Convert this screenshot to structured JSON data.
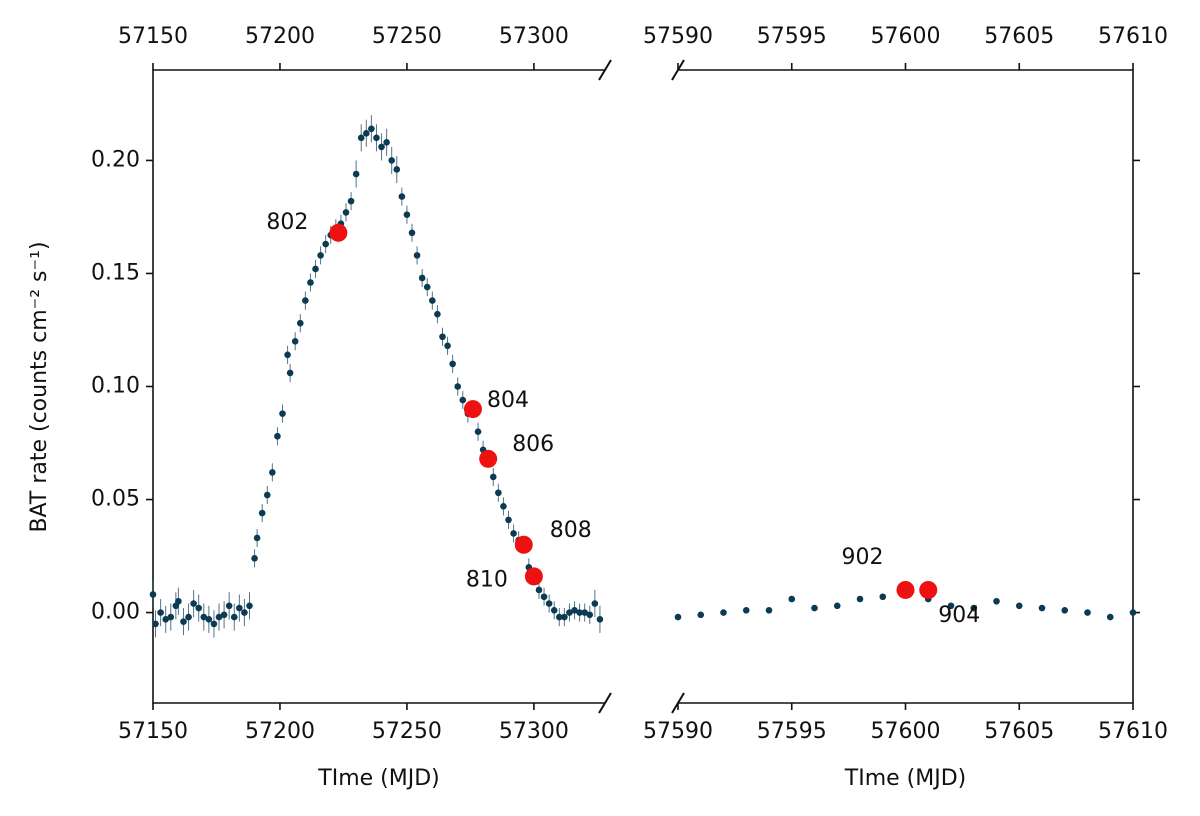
{
  "chart_data": [
    {
      "type": "scatter",
      "xlabel": "TIme (MJD)",
      "ylabel": "BAT rate (counts cm⁻² s⁻¹)",
      "color": "#0b3a53",
      "highlight_color": "#ee1111",
      "xlim": [
        57150,
        57328
      ],
      "xticks": [
        57150,
        57200,
        57250,
        57300
      ],
      "ylim": [
        -0.04,
        0.24
      ],
      "yticks": [
        {
          "value": 0,
          "label": "0.00"
        },
        {
          "value": 0.05,
          "label": "0.05"
        },
        {
          "value": 0.1,
          "label": "0.10"
        },
        {
          "value": 0.15,
          "label": "0.15"
        },
        {
          "value": 0.2,
          "label": "0.20"
        }
      ],
      "x": [
        57150,
        57151,
        57153,
        57155,
        57157,
        57159,
        57160,
        57162,
        57164,
        57166,
        57168,
        57170,
        57172,
        57174,
        57176,
        57178,
        57180,
        57182,
        57184,
        57186,
        57188,
        57190,
        57191,
        57193,
        57195,
        57197,
        57199,
        57201,
        57203,
        57204,
        57206,
        57208,
        57210,
        57212,
        57214,
        57216,
        57218,
        57220,
        57222,
        57224,
        57226,
        57228,
        57230,
        57232,
        57234,
        57236,
        57238,
        57240,
        57242,
        57244,
        57246,
        57248,
        57250,
        57252,
        57254,
        57256,
        57258,
        57260,
        57262,
        57264,
        57266,
        57268,
        57270,
        57272,
        57274,
        57278,
        57280,
        57284,
        57286,
        57288,
        57290,
        57292,
        57294,
        57298,
        57302,
        57304,
        57306,
        57308,
        57310,
        57312,
        57314,
        57316,
        57318,
        57320,
        57322,
        57324,
        57326
      ],
      "values": [
        0.008,
        -0.005,
        0.0,
        -0.003,
        -0.002,
        0.003,
        0.005,
        -0.004,
        -0.002,
        0.004,
        0.002,
        -0.002,
        -0.003,
        -0.005,
        -0.002,
        -0.001,
        0.003,
        -0.002,
        0.002,
        0.0,
        0.003,
        0.024,
        0.033,
        0.044,
        0.052,
        0.062,
        0.078,
        0.088,
        0.114,
        0.106,
        0.12,
        0.128,
        0.138,
        0.146,
        0.152,
        0.158,
        0.163,
        0.167,
        0.17,
        0.172,
        0.177,
        0.182,
        0.194,
        0.21,
        0.212,
        0.214,
        0.21,
        0.206,
        0.208,
        0.2,
        0.196,
        0.184,
        0.176,
        0.168,
        0.158,
        0.148,
        0.144,
        0.138,
        0.132,
        0.122,
        0.118,
        0.11,
        0.1,
        0.094,
        0.088,
        0.08,
        0.072,
        0.06,
        0.053,
        0.047,
        0.041,
        0.035,
        0.032,
        0.02,
        0.01,
        0.007,
        0.004,
        0.001,
        -0.002,
        -0.002,
        0.0,
        0.001,
        0.0,
        0.0,
        -0.001,
        0.004,
        -0.003
      ],
      "errors": [
        0.006,
        0.006,
        0.006,
        0.006,
        0.006,
        0.006,
        0.006,
        0.006,
        0.006,
        0.006,
        0.006,
        0.006,
        0.006,
        0.006,
        0.006,
        0.006,
        0.006,
        0.006,
        0.006,
        0.006,
        0.006,
        0.004,
        0.004,
        0.004,
        0.004,
        0.004,
        0.004,
        0.004,
        0.004,
        0.004,
        0.004,
        0.004,
        0.004,
        0.004,
        0.004,
        0.004,
        0.004,
        0.004,
        0.004,
        0.004,
        0.004,
        0.004,
        0.006,
        0.006,
        0.006,
        0.006,
        0.006,
        0.006,
        0.006,
        0.006,
        0.006,
        0.004,
        0.004,
        0.004,
        0.004,
        0.004,
        0.004,
        0.004,
        0.004,
        0.004,
        0.004,
        0.004,
        0.004,
        0.004,
        0.004,
        0.004,
        0.004,
        0.004,
        0.004,
        0.004,
        0.004,
        0.004,
        0.004,
        0.004,
        0.004,
        0.004,
        0.004,
        0.004,
        0.004,
        0.004,
        0.004,
        0.004,
        0.004,
        0.004,
        0.004,
        0.006,
        0.006
      ],
      "highlights": [
        {
          "x": 57223,
          "y": 0.168,
          "label": "802"
        },
        {
          "x": 57276,
          "y": 0.09,
          "label": "804"
        },
        {
          "x": 57282,
          "y": 0.068,
          "label": "806"
        },
        {
          "x": 57296,
          "y": 0.03,
          "label": "808"
        },
        {
          "x": 57300,
          "y": 0.016,
          "label": "810"
        }
      ]
    },
    {
      "type": "scatter",
      "xlabel": "TIme (MJD)",
      "color": "#0b3a53",
      "highlight_color": "#ee1111",
      "xlim": [
        57590,
        57610
      ],
      "xticks": [
        57590,
        57595,
        57600,
        57605,
        57610
      ],
      "ylim": [
        -0.04,
        0.24
      ],
      "yticks": [
        0,
        0.05,
        0.1,
        0.15,
        0.2
      ],
      "x": [
        57590,
        57591,
        57592,
        57593,
        57594,
        57595,
        57596,
        57597,
        57598,
        57599,
        57600,
        57601,
        57602,
        57603,
        57604,
        57605,
        57606,
        57607,
        57608,
        57609,
        57610
      ],
      "values": [
        -0.002,
        -0.001,
        0.0,
        0.001,
        0.001,
        0.006,
        0.002,
        0.003,
        0.006,
        0.007,
        0.008,
        0.006,
        0.003,
        0.002,
        0.005,
        0.003,
        0.002,
        0.001,
        0.0,
        -0.002,
        0.0
      ],
      "highlights": [
        {
          "x": 57600,
          "y": 0.01,
          "label": "902"
        },
        {
          "x": 57601,
          "y": 0.01,
          "label": "904"
        }
      ]
    }
  ]
}
